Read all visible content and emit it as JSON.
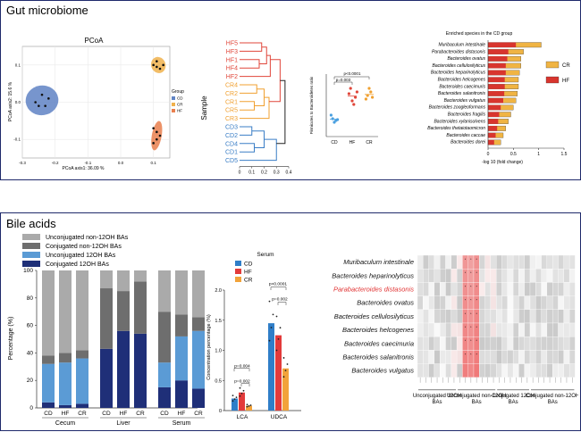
{
  "panel_a": {
    "title": "Gut microbiome",
    "pcoa": {
      "title": "PCoA",
      "xlabel": "PCoA axis1: 36.09 %",
      "ylabel": "PCoA axis2: 15.6 %",
      "legend_title": "Group",
      "legend": [
        "CD",
        "CR",
        "HF"
      ],
      "xticks": [
        "-0.3",
        "-0.2",
        "-0.1",
        "0.0",
        "0.1"
      ],
      "yticks": [
        "0.1",
        "0.0",
        "-0.1"
      ],
      "colors": {
        "CD": "#5f83c4",
        "CR": "#f0b14c",
        "HF": "#e97f4e"
      }
    },
    "dendro": {
      "ylabel": "Sample",
      "leaves": [
        "HF5",
        "HF3",
        "HF1",
        "HF4",
        "HF2",
        "CR4",
        "CR2",
        "CR1",
        "CR5",
        "CR3",
        "CD3",
        "CD2",
        "CD4",
        "CD1",
        "CD5"
      ],
      "xticks": [
        "0",
        "0.1",
        "0.2",
        "0.3",
        "0.4"
      ],
      "colors": {
        "HF": "#e0463a",
        "CR": "#f0a030",
        "CD": "#3a7ec6"
      }
    },
    "ratio": {
      "ylabel": "Firmicutes to Bacteroidetes ratio",
      "groups": [
        "CD",
        "HF",
        "CR"
      ],
      "p1": "p<0.0001",
      "p2": "p=0.003"
    },
    "enriched": {
      "title": "Enriched species in the CD group",
      "xlabel": "-log 10 (fold change)",
      "xticks": [
        "0",
        "0.5",
        "1",
        "1.5"
      ],
      "legend": [
        "CR",
        "HF"
      ],
      "species": [
        "Muribaculum intestinale",
        "Parabacteroides distasonis",
        "Bacteroides ovatus",
        "Bacteroides cellulosilyticus",
        "Bacteroides heparinolyticus",
        "Bacteroides helcogenes",
        "Bacteroides caecimuris",
        "Bacteroides salanitronis",
        "Bacteroides vulgatus",
        "Bacteroides zoogleoformans",
        "Bacteroides fragilis",
        "Bacteroides xylanisolvens",
        "Bacteroides thetaiotaomicron",
        "Bacteroides caccae",
        "Bacteroides dorei"
      ]
    }
  },
  "panel_b": {
    "title": "Bile acids",
    "stacked": {
      "legend": [
        "Unconjugated non-12OH BAs",
        "Conjugated non-12OH BAs",
        "Unconjugated 12OH BAs",
        "Conjugated 12OH BAs"
      ],
      "ylabel": "Percentage (%)",
      "yticks": [
        "100",
        "80",
        "60",
        "40",
        "20",
        "0"
      ],
      "bar_labels": [
        "CD",
        "HF",
        "CR",
        "CD",
        "HF",
        "CR",
        "CD",
        "HF",
        "CR"
      ],
      "groups": [
        "Cecum",
        "Liver",
        "Serum"
      ],
      "colors": [
        "#aaaaaa",
        "#6e6e6e",
        "#5b9bd5",
        "#1f2f78"
      ]
    },
    "serum": {
      "title": "Serum",
      "legend": [
        "CD",
        "HF",
        "CR"
      ],
      "ylabel": "Concentration percentage (%)",
      "yticks": [
        "2.0",
        "1.5",
        "1.0",
        "0.5",
        "0"
      ],
      "categories": [
        "LCA",
        "UDCA"
      ],
      "p_lca": [
        "p=0.004",
        "p=0.002"
      ],
      "p_udca": [
        "p<0.0001",
        "p=0.002"
      ],
      "colors": [
        "#2f7ec8",
        "#e33a3a",
        "#f2a33a"
      ]
    },
    "heatmap": {
      "rows": [
        "Muribaculum intestinale",
        "Bacteroides heparinolyticus",
        "Parabacteroides distasonis",
        "Bacteroides ovatus",
        "Bacteroides cellulosilyticus",
        "Bacteroides helcogenes",
        "Bacteroides caecimuria",
        "Bacteroides salanitronis",
        "Bacteroides vulgatus"
      ],
      "highlight_color": "#e03030",
      "col_groups": [
        "Unconjugated 12OH BAs",
        "Unconjugated non-12OH BAs",
        "Conjugated 12OH BAs",
        "Conjugated non-12OH BAs"
      ]
    }
  },
  "chart_data": [
    {
      "type": "bar",
      "title": "",
      "categories": [
        "CD",
        "HF",
        "CR",
        "CD",
        "HF",
        "CR",
        "CD",
        "HF",
        "CR"
      ],
      "series": [
        {
          "name": "Conjugated 12OH BAs",
          "values": [
            4,
            2,
            3,
            43,
            56,
            54,
            15,
            20,
            14
          ]
        },
        {
          "name": "Unconjugated 12OH BAs",
          "values": [
            28,
            31,
            33,
            0,
            0,
            0,
            18,
            32,
            42
          ]
        },
        {
          "name": "Conjugated non-12OH BAs",
          "values": [
            6,
            7,
            6,
            44,
            29,
            38,
            37,
            16,
            10
          ]
        },
        {
          "name": "Unconjugated non-12OH BAs",
          "values": [
            62,
            60,
            58,
            13,
            15,
            8,
            30,
            32,
            34
          ]
        }
      ],
      "ylabel": "Percentage (%)",
      "ylim": [
        0,
        100
      ]
    },
    {
      "type": "bar",
      "title": "Serum",
      "categories": [
        "LCA",
        "UDCA"
      ],
      "series": [
        {
          "name": "CD",
          "values": [
            0.2,
            1.45
          ]
        },
        {
          "name": "HF",
          "values": [
            0.3,
            1.25
          ]
        },
        {
          "name": "CR",
          "values": [
            0.08,
            0.7
          ]
        }
      ],
      "ylabel": "Concentration percentage (%)",
      "ylim": [
        0,
        2
      ]
    },
    {
      "type": "bar",
      "title": "Enriched species in the CD group",
      "categories": [
        "Muribaculum intestinale",
        "Parabacteroides distasonis",
        "Bacteroides ovatus",
        "Bacteroides cellulosilyticus",
        "Bacteroides heparinolyticus",
        "Bacteroides helcogenes",
        "Bacteroides caecimuris",
        "Bacteroides salanitronis",
        "Bacteroides vulgatus",
        "Bacteroides zoogleoformans",
        "Bacteroides fragilis",
        "Bacteroides xylanisolvens",
        "Bacteroides thetaiotaomicron",
        "Bacteroides caccae",
        "Bacteroides dorei"
      ],
      "series": [
        {
          "name": "CR",
          "values": [
            1.05,
            0.7,
            0.65,
            0.65,
            0.62,
            0.6,
            0.6,
            0.58,
            0.55,
            0.5,
            0.45,
            0.4,
            0.35,
            0.3,
            0.25
          ]
        },
        {
          "name": "HF",
          "values": [
            0.55,
            0.4,
            0.38,
            0.35,
            0.35,
            0.33,
            0.33,
            0.32,
            0.3,
            0.25,
            0.22,
            0.2,
            0.18,
            0.15,
            0.12
          ]
        }
      ],
      "xlabel": "-log 10 (fold change)",
      "xlim": [
        0,
        1.5
      ]
    },
    {
      "type": "scatter",
      "title": "PCoA",
      "series": [
        {
          "name": "CD",
          "points": [
            [
              -0.26,
              0.0
            ],
            [
              -0.24,
              0.02
            ],
            [
              -0.23,
              -0.01
            ],
            [
              -0.22,
              0.01
            ],
            [
              -0.25,
              -0.01
            ]
          ]
        },
        {
          "name": "CR",
          "points": [
            [
              0.1,
              0.1
            ],
            [
              0.11,
              0.11
            ],
            [
              0.12,
              0.09
            ],
            [
              0.13,
              0.1
            ],
            [
              0.11,
              0.095
            ]
          ]
        },
        {
          "name": "HF",
          "points": [
            [
              0.1,
              -0.07
            ],
            [
              0.11,
              -0.08
            ],
            [
              0.11,
              -0.1
            ],
            [
              0.12,
              -0.09
            ],
            [
              0.1,
              -0.11
            ]
          ]
        }
      ],
      "xlabel": "PCoA axis1: 36.09 %",
      "ylabel": "PCoA axis2: 15.6 %",
      "xlim": [
        -0.3,
        0.15
      ],
      "ylim": [
        -0.15,
        0.15
      ]
    }
  ]
}
